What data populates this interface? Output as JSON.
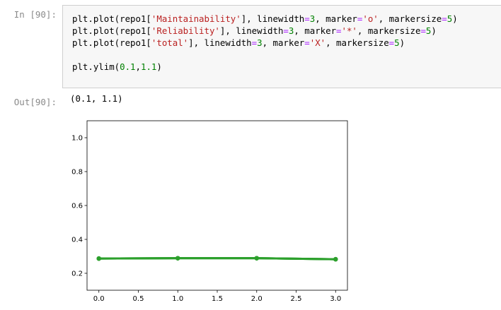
{
  "cell": {
    "in_prompt": "In [90]:",
    "out_prompt": "Out[90]:",
    "code_lines": [
      [
        {
          "t": "plt.plot(repo1[",
          "c": ""
        },
        {
          "t": "'Maintainability'",
          "c": "str"
        },
        {
          "t": "], linewidth",
          "c": ""
        },
        {
          "t": "=",
          "c": "kw"
        },
        {
          "t": "3",
          "c": "num"
        },
        {
          "t": ", marker",
          "c": ""
        },
        {
          "t": "=",
          "c": "kw"
        },
        {
          "t": "'o'",
          "c": "str"
        },
        {
          "t": ", markersize",
          "c": ""
        },
        {
          "t": "=",
          "c": "kw"
        },
        {
          "t": "5",
          "c": "num"
        },
        {
          "t": ")",
          "c": ""
        }
      ],
      [
        {
          "t": "plt.plot(repo1[",
          "c": ""
        },
        {
          "t": "'Reliability'",
          "c": "str"
        },
        {
          "t": "], linewidth",
          "c": ""
        },
        {
          "t": "=",
          "c": "kw"
        },
        {
          "t": "3",
          "c": "num"
        },
        {
          "t": ", marker",
          "c": ""
        },
        {
          "t": "=",
          "c": "kw"
        },
        {
          "t": "'*'",
          "c": "str"
        },
        {
          "t": ", markersize",
          "c": ""
        },
        {
          "t": "=",
          "c": "kw"
        },
        {
          "t": "5",
          "c": "num"
        },
        {
          "t": ")",
          "c": ""
        }
      ],
      [
        {
          "t": "plt.plot(repo1[",
          "c": ""
        },
        {
          "t": "'total'",
          "c": "str"
        },
        {
          "t": "], linewidth",
          "c": ""
        },
        {
          "t": "=",
          "c": "kw"
        },
        {
          "t": "3",
          "c": "num"
        },
        {
          "t": ", marker",
          "c": ""
        },
        {
          "t": "=",
          "c": "kw"
        },
        {
          "t": "'X'",
          "c": "str"
        },
        {
          "t": ", markersize",
          "c": ""
        },
        {
          "t": "=",
          "c": "kw"
        },
        {
          "t": "5",
          "c": "num"
        },
        {
          "t": ")",
          "c": ""
        }
      ],
      [],
      [
        {
          "t": "plt.ylim(",
          "c": ""
        },
        {
          "t": "0.1",
          "c": "num"
        },
        {
          "t": ",",
          "c": ""
        },
        {
          "t": "1.1",
          "c": "num"
        },
        {
          "t": ")",
          "c": ""
        }
      ]
    ],
    "output_text": "(0.1, 1.1)"
  },
  "colors": {
    "string": "#ba2121",
    "number": "#008000",
    "operator": "#aa22ff",
    "prompt": "#8a8a8a",
    "line_green": "#2ca02c"
  },
  "chart_data": {
    "type": "line",
    "title": "",
    "xlabel": "",
    "ylabel": "",
    "xlim": [
      -0.15,
      3.15
    ],
    "ylim": [
      0.1,
      1.1
    ],
    "xticks": [
      0.0,
      0.5,
      1.0,
      1.5,
      2.0,
      2.5,
      3.0
    ],
    "xtick_labels": [
      "0.0",
      "0.5",
      "1.0",
      "1.5",
      "2.0",
      "2.5",
      "3.0"
    ],
    "yticks": [
      0.2,
      0.4,
      0.6,
      0.8,
      1.0
    ],
    "ytick_labels": [
      "0.2",
      "0.4",
      "0.6",
      "0.8",
      "1.0"
    ],
    "grid": false,
    "series": [
      {
        "x": [
          0,
          1,
          2,
          3
        ],
        "values": [
          0.287,
          0.289,
          0.289,
          0.283
        ],
        "color": "#2ca02c",
        "marker": "o"
      },
      {
        "x": [
          0,
          1,
          2,
          3
        ],
        "values": [
          0.287,
          0.289,
          0.289,
          0.283
        ],
        "color": "#2ca02c",
        "marker": "*"
      },
      {
        "x": [
          0,
          1,
          2,
          3
        ],
        "values": [
          0.287,
          0.289,
          0.289,
          0.283
        ],
        "color": "#2ca02c",
        "marker": "X"
      }
    ]
  }
}
